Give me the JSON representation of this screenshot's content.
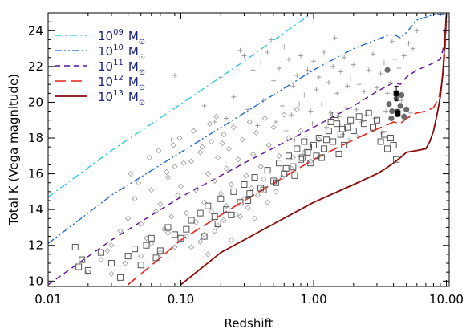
{
  "chart_data": {
    "type": "scatter",
    "xlabel": "Redshift",
    "ylabel": "Total K (Vega magnitude)",
    "xscale": "log",
    "xlim": [
      0.01,
      10.5
    ],
    "ylim": [
      9.7,
      25.0
    ],
    "x_ticks": [
      {
        "value": 0.01,
        "label": "0.01"
      },
      {
        "value": 0.1,
        "label": "0.10"
      },
      {
        "value": 1.0,
        "label": "1.00"
      },
      {
        "value": 10.0,
        "label": "10.00"
      }
    ],
    "y_ticks": [
      {
        "value": 10,
        "label": "10"
      },
      {
        "value": 12,
        "label": "12"
      },
      {
        "value": 14,
        "label": "14"
      },
      {
        "value": 16,
        "label": "16"
      },
      {
        "value": 18,
        "label": "18"
      },
      {
        "value": 20,
        "label": "20"
      },
      {
        "value": 22,
        "label": "22"
      },
      {
        "value": 24,
        "label": "24"
      }
    ],
    "legend_position": "top-left",
    "curves": [
      {
        "mantissa": "10",
        "exponent": "09",
        "unit": "M",
        "unit_sub": "⊙",
        "color": "#1fc7de",
        "dash": "dash-dot",
        "width": 1.3,
        "x": [
          0.01,
          0.03,
          0.1,
          0.3,
          0.98
        ],
        "y": [
          14.7,
          17.3,
          19.9,
          22.3,
          25.0
        ]
      },
      {
        "mantissa": "10",
        "exponent": "10",
        "unit": "M",
        "unit_sub": "⊙",
        "color": "#1560d4",
        "dash": "dash-dot-dot",
        "width": 1.3,
        "x": [
          0.01,
          0.03,
          0.1,
          0.3,
          1.0,
          2.0,
          3.5,
          4.0,
          4.5,
          5.0,
          6.0,
          8.0,
          10.0
        ],
        "y": [
          12.1,
          14.8,
          17.2,
          19.4,
          21.8,
          23.0,
          23.7,
          23.8,
          23.6,
          23.9,
          24.6,
          24.9,
          24.9
        ]
      },
      {
        "mantissa": "10",
        "exponent": "11",
        "unit": "M",
        "unit_sub": "⊙",
        "color": "#5b0f9c",
        "dash": "dash",
        "width": 1.4,
        "x": [
          0.01,
          0.03,
          0.1,
          0.3,
          1.0,
          2.0,
          3.0,
          4.0,
          4.5,
          5.0,
          6.0,
          7.0,
          8.0,
          9.0,
          9.6,
          10.0
        ],
        "y": [
          9.8,
          12.3,
          14.7,
          16.6,
          18.6,
          19.8,
          20.6,
          21.1,
          21.0,
          21.4,
          21.8,
          22.0,
          22.2,
          22.4,
          23.2,
          24.9
        ]
      },
      {
        "mantissa": "10",
        "exponent": "12",
        "unit": "M",
        "unit_sub": "⊙",
        "color": "#e8231c",
        "dash": "long-dash",
        "width": 1.6,
        "x": [
          0.04,
          0.07,
          0.1,
          0.3,
          1.0,
          2.0,
          3.0,
          4.0,
          4.5,
          5.0,
          6.0,
          7.0,
          8.0,
          8.8,
          9.4,
          9.8,
          10.0
        ],
        "y": [
          9.8,
          11.3,
          12.3,
          14.5,
          16.8,
          17.9,
          18.5,
          18.9,
          18.8,
          19.1,
          19.4,
          19.5,
          19.7,
          20.3,
          21.5,
          23.0,
          24.9
        ]
      },
      {
        "mantissa": "10",
        "exponent": "13",
        "unit": "M",
        "unit_sub": "⊙",
        "color": "#8b0a0a",
        "dash": "solid",
        "width": 1.8,
        "x": [
          0.1,
          0.2,
          0.5,
          1.0,
          2.0,
          3.0,
          3.5,
          4.0,
          4.5,
          5.0,
          6.0,
          7.0,
          7.5,
          8.0,
          8.5,
          9.0,
          9.4,
          9.7,
          10.0
        ],
        "y": [
          9.8,
          11.6,
          13.2,
          14.4,
          15.4,
          16.0,
          16.3,
          16.6,
          16.9,
          17.2,
          17.3,
          17.4,
          17.8,
          18.4,
          19.3,
          20.3,
          21.6,
          23.2,
          24.9
        ]
      }
    ],
    "markers": {
      "crosses": [
        [
          0.3,
          22.6
        ],
        [
          0.35,
          21.8
        ],
        [
          0.4,
          22.2
        ],
        [
          0.45,
          22.8
        ],
        [
          0.5,
          21.2
        ],
        [
          0.55,
          21.9
        ],
        [
          0.6,
          23.1
        ],
        [
          0.65,
          22.4
        ],
        [
          0.7,
          20.9
        ],
        [
          0.75,
          21.5
        ],
        [
          0.8,
          22.6
        ],
        [
          0.85,
          20.4
        ],
        [
          0.9,
          21.8
        ],
        [
          1.0,
          22.3
        ],
        [
          1.05,
          20.7
        ],
        [
          1.1,
          21.4
        ],
        [
          1.2,
          22.8
        ],
        [
          1.3,
          21.1
        ],
        [
          1.4,
          22.0
        ],
        [
          1.5,
          20.5
        ],
        [
          1.6,
          21.7
        ],
        [
          1.7,
          22.5
        ],
        [
          1.8,
          20.9
        ],
        [
          1.9,
          21.3
        ],
        [
          2.0,
          22.1
        ],
        [
          2.2,
          21.0
        ],
        [
          2.4,
          20.6
        ],
        [
          2.6,
          21.8
        ],
        [
          2.8,
          22.7
        ],
        [
          3.0,
          20.8
        ],
        [
          3.2,
          21.6
        ],
        [
          3.4,
          22.2
        ],
        [
          3.6,
          20.5
        ],
        [
          3.8,
          21.1
        ],
        [
          4.1,
          22.4
        ],
        [
          4.4,
          21.9
        ],
        [
          4.8,
          22.6
        ],
        [
          5.2,
          23.3
        ],
        [
          5.6,
          23.0
        ],
        [
          6.0,
          24.0
        ],
        [
          0.2,
          21.4
        ],
        [
          0.25,
          20.3
        ],
        [
          0.28,
          22.9
        ],
        [
          0.32,
          19.6
        ],
        [
          0.42,
          20.1
        ],
        [
          0.48,
          23.5
        ],
        [
          0.58,
          19.8
        ],
        [
          0.68,
          19.3
        ],
        [
          0.78,
          19.9
        ],
        [
          0.95,
          19.5
        ],
        [
          1.15,
          19.9
        ],
        [
          1.35,
          19.4
        ],
        [
          1.55,
          19.2
        ],
        [
          1.75,
          19.7
        ],
        [
          2.1,
          19.6
        ],
        [
          2.5,
          19.3
        ],
        [
          0.09,
          21.5
        ],
        [
          0.085,
          17.9
        ],
        [
          0.15,
          19.8
        ],
        [
          0.18,
          18.9
        ],
        [
          0.22,
          19.1
        ],
        [
          0.38,
          18.7
        ],
        [
          0.62,
          18.4
        ],
        [
          0.88,
          18.1
        ],
        [
          1.25,
          18.6
        ],
        [
          1.65,
          18.2
        ],
        [
          2.3,
          18.9
        ],
        [
          2.9,
          19.1
        ],
        [
          3.5,
          19.5
        ],
        [
          4.6,
          20.1
        ],
        [
          5.4,
          19.4
        ],
        [
          3.9,
          23.4
        ],
        [
          2.7,
          23.1
        ],
        [
          1.45,
          23.6
        ],
        [
          0.52,
          18.9
        ],
        [
          0.72,
          17.9
        ],
        [
          0.98,
          18.8
        ],
        [
          1.85,
          17.9
        ],
        [
          2.15,
          18.1
        ],
        [
          3.3,
          18.3
        ]
      ],
      "diamonds": [
        [
          0.02,
          10.5
        ],
        [
          0.025,
          11.2
        ],
        [
          0.03,
          12.0
        ],
        [
          0.035,
          12.8
        ],
        [
          0.04,
          13.5
        ],
        [
          0.045,
          14.6
        ],
        [
          0.05,
          13.2
        ],
        [
          0.055,
          12.4
        ],
        [
          0.06,
          15.1
        ],
        [
          0.065,
          13.9
        ],
        [
          0.07,
          14.3
        ],
        [
          0.075,
          12.9
        ],
        [
          0.08,
          15.8
        ],
        [
          0.085,
          13.6
        ],
        [
          0.09,
          16.4
        ],
        [
          0.095,
          14.8
        ],
        [
          0.1,
          15.3
        ],
        [
          0.11,
          13.8
        ],
        [
          0.12,
          16.7
        ],
        [
          0.13,
          15.1
        ],
        [
          0.14,
          17.2
        ],
        [
          0.15,
          14.4
        ],
        [
          0.16,
          16.0
        ],
        [
          0.17,
          17.8
        ],
        [
          0.18,
          15.6
        ],
        [
          0.19,
          16.9
        ],
        [
          0.2,
          14.9
        ],
        [
          0.21,
          18.2
        ],
        [
          0.22,
          16.3
        ],
        [
          0.23,
          17.4
        ],
        [
          0.24,
          15.4
        ],
        [
          0.25,
          18.6
        ],
        [
          0.27,
          16.8
        ],
        [
          0.29,
          17.9
        ],
        [
          0.31,
          15.9
        ],
        [
          0.33,
          18.9
        ],
        [
          0.35,
          17.1
        ],
        [
          0.37,
          18.3
        ],
        [
          0.4,
          16.4
        ],
        [
          0.43,
          19.1
        ],
        [
          0.46,
          17.6
        ],
        [
          0.5,
          18.6
        ],
        [
          0.55,
          17.0
        ],
        [
          0.6,
          19.3
        ],
        [
          0.65,
          18.0
        ],
        [
          0.7,
          16.9
        ],
        [
          0.75,
          19.6
        ],
        [
          0.8,
          18.4
        ],
        [
          0.05,
          11.4
        ],
        [
          0.06,
          12.1
        ],
        [
          0.07,
          11.6
        ],
        [
          0.08,
          12.7
        ],
        [
          0.09,
          11.9
        ],
        [
          0.11,
          12.5
        ],
        [
          0.13,
          13.3
        ],
        [
          0.15,
          12.6
        ],
        [
          0.17,
          13.9
        ],
        [
          0.19,
          13.1
        ],
        [
          0.22,
          14.2
        ],
        [
          0.26,
          13.7
        ],
        [
          0.3,
          14.6
        ],
        [
          0.34,
          15.2
        ],
        [
          0.38,
          14.8
        ],
        [
          0.42,
          15.7
        ],
        [
          0.03,
          10.4
        ],
        [
          0.038,
          11.0
        ],
        [
          0.028,
          11.7
        ],
        [
          0.042,
          16.0
        ],
        [
          0.048,
          15.5
        ],
        [
          0.058,
          16.9
        ],
        [
          0.068,
          17.3
        ],
        [
          0.078,
          16.1
        ],
        [
          0.088,
          17.6
        ],
        [
          0.098,
          18.0
        ],
        [
          0.105,
          16.6
        ],
        [
          0.125,
          18.4
        ],
        [
          0.145,
          17.5
        ],
        [
          0.165,
          18.8
        ],
        [
          0.185,
          19.2
        ],
        [
          0.205,
          17.7
        ],
        [
          0.12,
          11.9
        ],
        [
          0.14,
          12.2
        ],
        [
          0.16,
          11.5
        ],
        [
          0.18,
          12.8
        ],
        [
          0.21,
          13.4
        ],
        [
          0.24,
          12.3
        ],
        [
          0.28,
          13.6
        ],
        [
          0.32,
          14.1
        ],
        [
          0.36,
          13.5
        ],
        [
          0.45,
          14.4
        ],
        [
          0.52,
          15.0
        ],
        [
          0.58,
          15.8
        ],
        [
          0.68,
          16.3
        ],
        [
          0.85,
          17.2
        ],
        [
          0.95,
          16.7
        ],
        [
          1.1,
          17.9
        ]
      ],
      "squares": [
        [
          0.016,
          11.9
        ],
        [
          0.017,
          10.8
        ],
        [
          0.018,
          11.2
        ],
        [
          0.02,
          10.6
        ],
        [
          0.025,
          11.6
        ],
        [
          0.03,
          11.0
        ],
        [
          0.04,
          11.4
        ],
        [
          0.045,
          11.8
        ],
        [
          0.05,
          10.9
        ],
        [
          0.055,
          12.0
        ],
        [
          0.06,
          12.4
        ],
        [
          0.07,
          11.7
        ],
        [
          0.08,
          13.0
        ],
        [
          0.09,
          12.6
        ],
        [
          0.1,
          12.4
        ],
        [
          0.12,
          13.4
        ],
        [
          0.14,
          13.8
        ],
        [
          0.16,
          14.2
        ],
        [
          0.18,
          13.6
        ],
        [
          0.2,
          14.6
        ],
        [
          0.22,
          14.0
        ],
        [
          0.25,
          15.0
        ],
        [
          0.28,
          14.4
        ],
        [
          0.3,
          15.4
        ],
        [
          0.33,
          14.9
        ],
        [
          0.36,
          15.8
        ],
        [
          0.4,
          15.2
        ],
        [
          0.45,
          16.2
        ],
        [
          0.5,
          15.6
        ],
        [
          0.55,
          16.6
        ],
        [
          0.6,
          16.0
        ],
        [
          0.65,
          17.0
        ],
        [
          0.7,
          16.4
        ],
        [
          0.75,
          17.4
        ],
        [
          0.8,
          16.8
        ],
        [
          0.85,
          17.8
        ],
        [
          0.9,
          17.2
        ],
        [
          0.95,
          16.6
        ],
        [
          1.0,
          17.6
        ],
        [
          1.05,
          17.0
        ],
        [
          1.1,
          18.0
        ],
        [
          1.2,
          17.4
        ],
        [
          1.3,
          18.4
        ],
        [
          1.4,
          17.8
        ],
        [
          1.5,
          18.8
        ],
        [
          1.6,
          18.2
        ],
        [
          1.7,
          17.6
        ],
        [
          1.8,
          18.6
        ],
        [
          1.9,
          19.0
        ],
        [
          2.0,
          18.4
        ],
        [
          2.2,
          19.2
        ],
        [
          2.4,
          18.8
        ],
        [
          2.6,
          19.4
        ],
        [
          2.8,
          18.6
        ],
        [
          3.0,
          19.0
        ],
        [
          3.2,
          17.8
        ],
        [
          3.4,
          18.2
        ],
        [
          3.6,
          17.4
        ],
        [
          3.8,
          18.0
        ],
        [
          4.0,
          17.6
        ],
        [
          4.2,
          16.8
        ],
        [
          0.035,
          10.2
        ],
        [
          0.065,
          11.3
        ],
        [
          0.11,
          12.9
        ],
        [
          0.15,
          12.5
        ],
        [
          0.19,
          13.2
        ],
        [
          0.24,
          13.7
        ],
        [
          0.32,
          14.5
        ],
        [
          0.42,
          15.1
        ],
        [
          0.52,
          15.5
        ],
        [
          0.62,
          16.3
        ],
        [
          0.72,
          15.9
        ],
        [
          0.82,
          16.9
        ],
        [
          0.92,
          17.5
        ],
        [
          1.15,
          16.9
        ],
        [
          1.25,
          17.9
        ],
        [
          1.35,
          18.9
        ],
        [
          1.45,
          19.3
        ],
        [
          1.55,
          17.1
        ],
        [
          1.65,
          18.5
        ]
      ],
      "filled_circles": [
        [
          3.6,
          21.8
        ],
        [
          3.7,
          19.9
        ],
        [
          3.9,
          19.5
        ],
        [
          4.2,
          20.2
        ],
        [
          4.5,
          19.8
        ],
        [
          4.8,
          19.2
        ],
        [
          5.0,
          19.6
        ],
        [
          4.6,
          20.4
        ],
        [
          3.85,
          19.1
        ]
      ],
      "error_points": [
        {
          "x": 4.2,
          "y": 20.5,
          "err": 0.4
        },
        {
          "x": 4.3,
          "y": 19.4,
          "err": 0.2
        }
      ]
    }
  }
}
